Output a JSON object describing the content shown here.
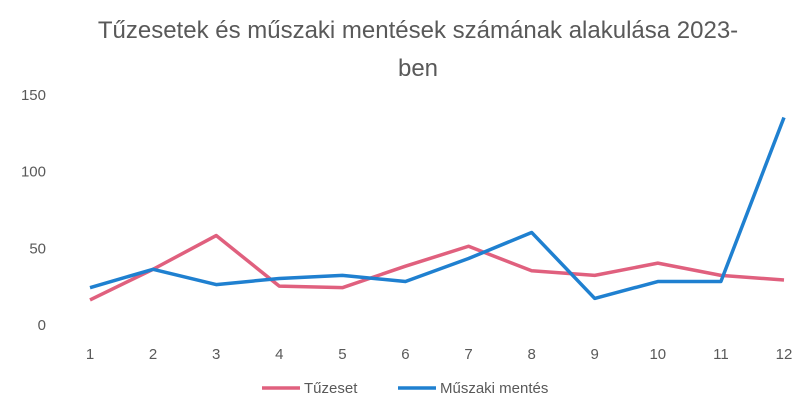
{
  "chart_data": {
    "type": "line",
    "title": "Tűzesetek és műszaki mentések számának alakulása 2023-ben",
    "categories": [
      "1",
      "2",
      "3",
      "4",
      "5",
      "6",
      "7",
      "8",
      "9",
      "10",
      "11",
      "12"
    ],
    "series": [
      {
        "name": "Tűzeset",
        "color": "#e0607e",
        "values": [
          17,
          37,
          59,
          26,
          25,
          39,
          52,
          36,
          33,
          41,
          33,
          30
        ]
      },
      {
        "name": "Műszaki mentés",
        "color": "#1f80d0",
        "values": [
          25,
          37,
          27,
          31,
          33,
          29,
          44,
          61,
          18,
          29,
          29,
          136
        ]
      }
    ],
    "ylim": [
      0,
      150
    ],
    "yticks": [
      0,
      50,
      100,
      150
    ],
    "grid": false,
    "legend": "bottom"
  }
}
